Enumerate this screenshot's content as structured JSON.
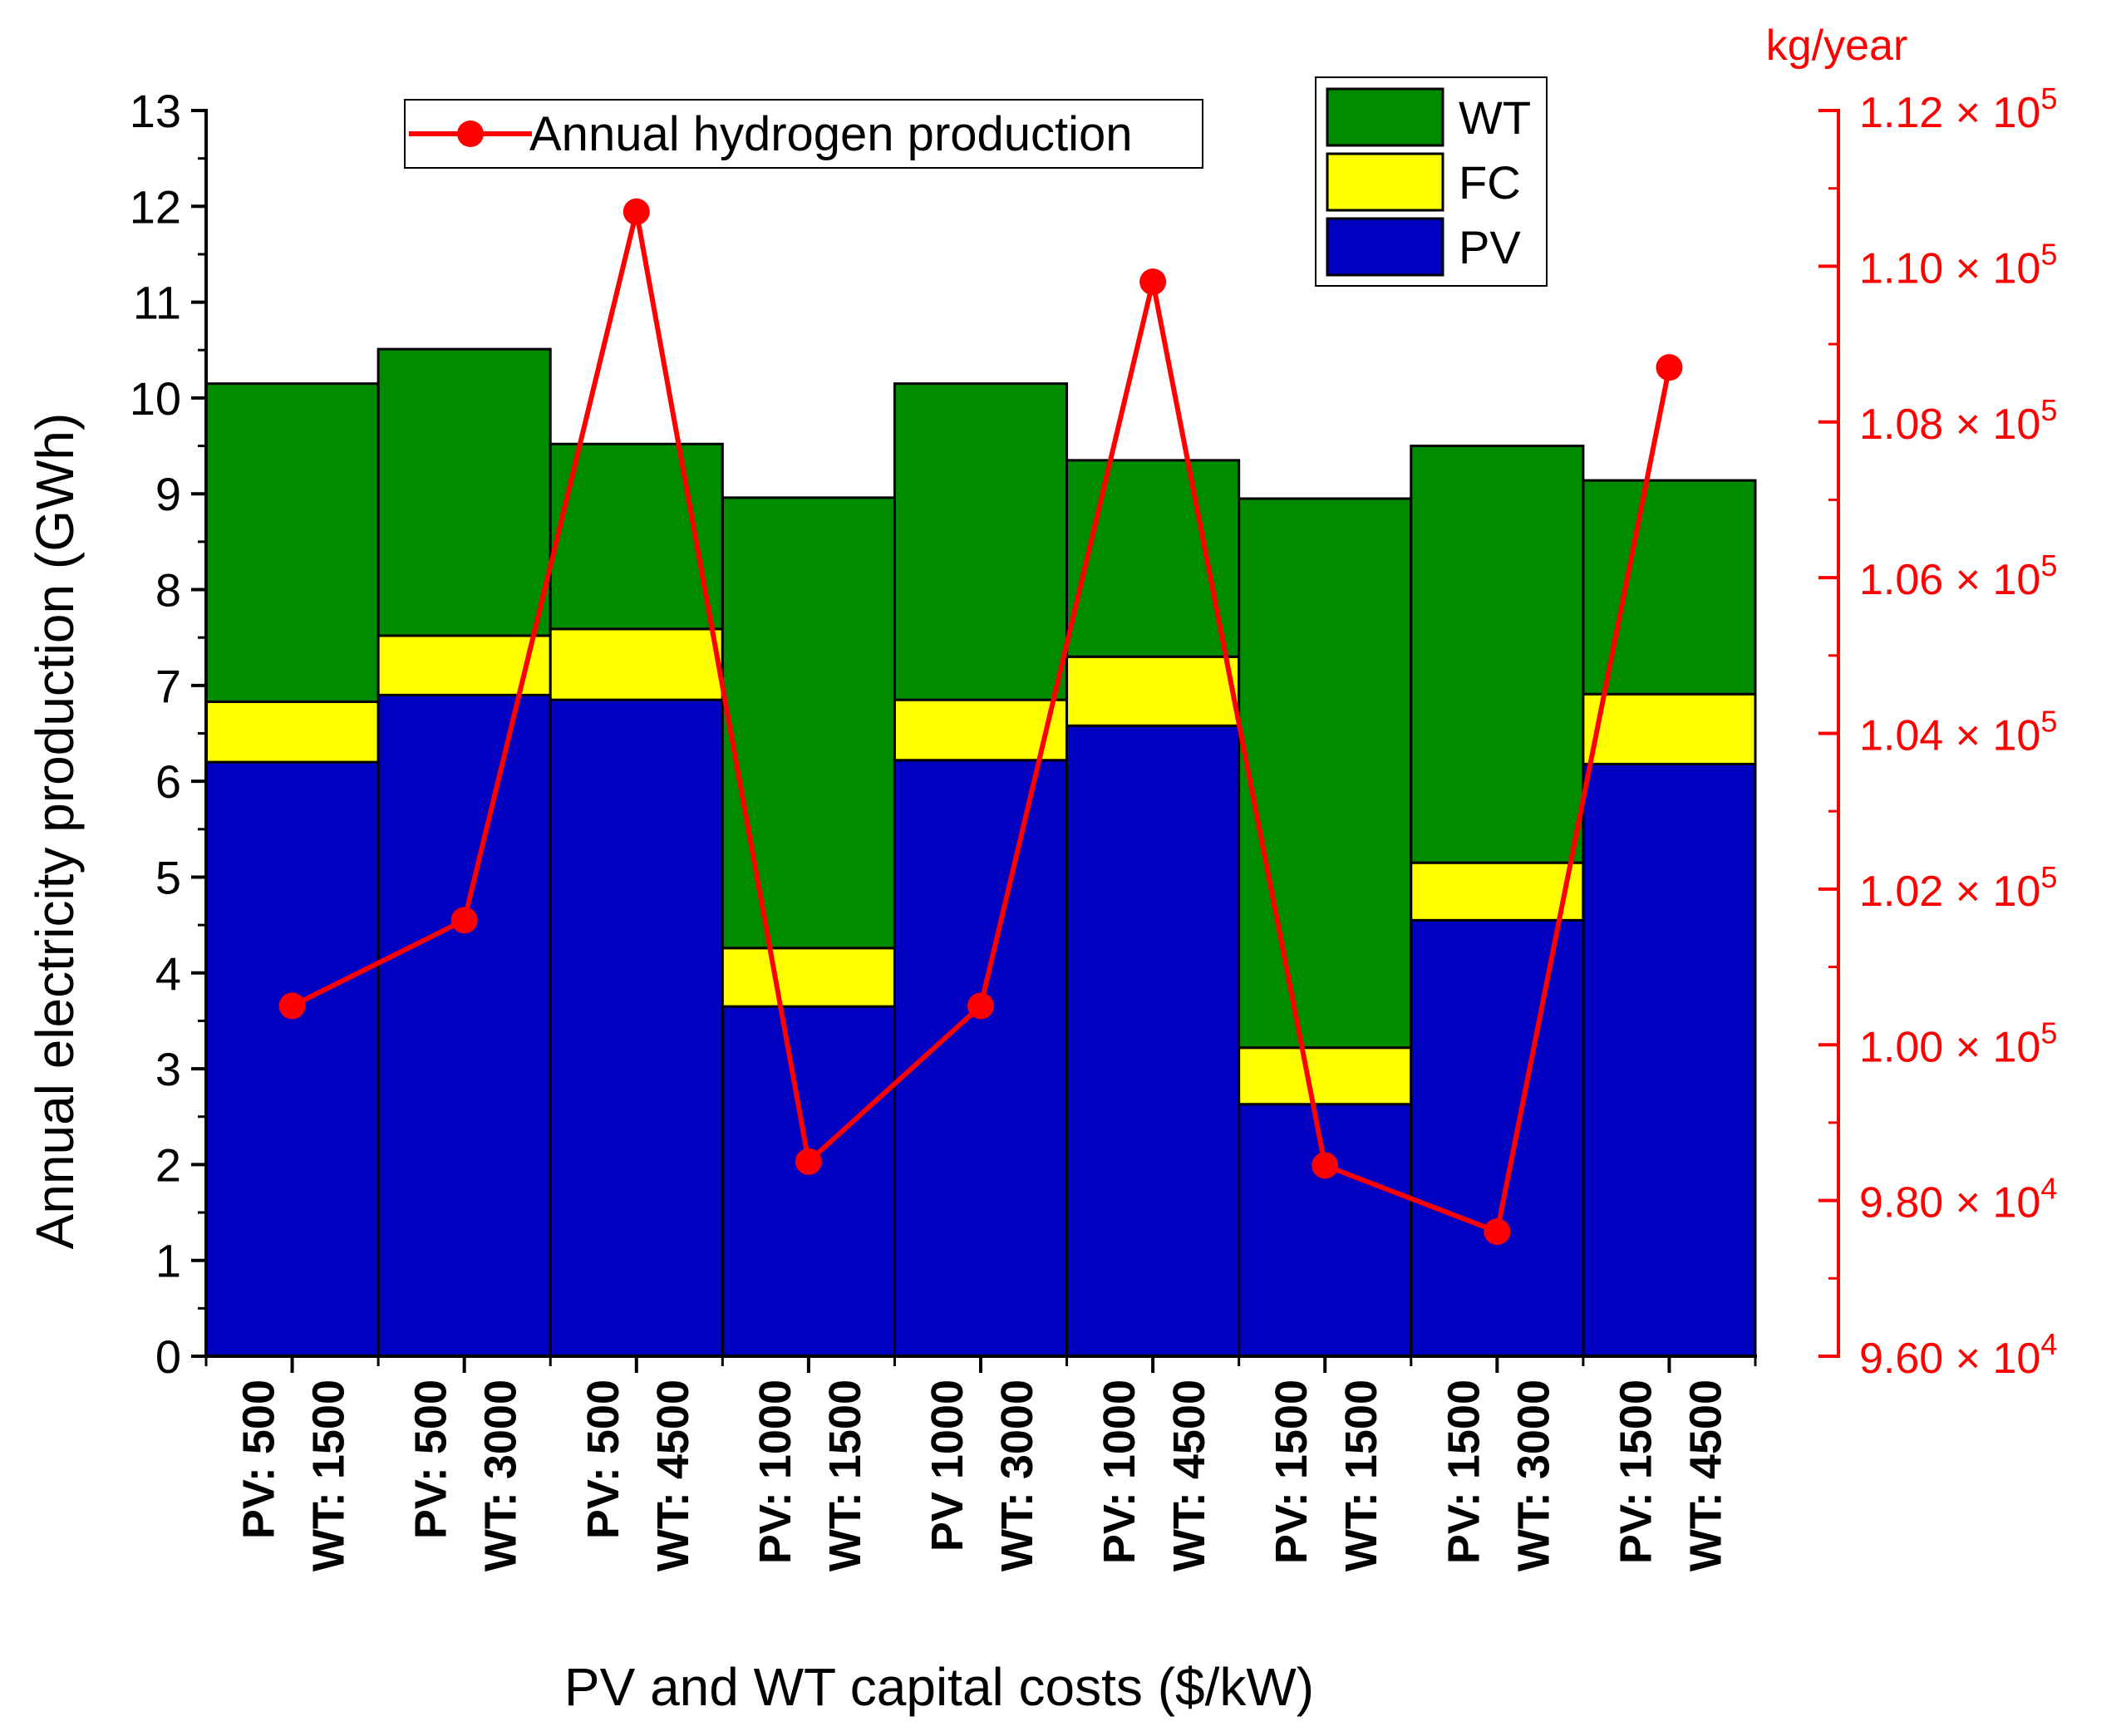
{
  "chart_data": {
    "type": "bar",
    "stacked": true,
    "xlabel": "PV and WT capital costs ($/kW)",
    "ylabel": "Annual electricity production (GWh)",
    "ylim": [
      0,
      13
    ],
    "yticks": [
      "0",
      "1",
      "2",
      "3",
      "4",
      "5",
      "6",
      "7",
      "8",
      "9",
      "10",
      "11",
      "12",
      "13"
    ],
    "categories": [
      [
        "PV: 500",
        "WT: 1500"
      ],
      [
        "PV: 500",
        "WT: 3000"
      ],
      [
        "PV: 500",
        "WT: 4500"
      ],
      [
        "PV: 1000",
        "WT: 1500"
      ],
      [
        "PV 1000",
        "WT: 3000"
      ],
      [
        "PV: 1000",
        "WT: 4500"
      ],
      [
        "PV: 1500",
        "WT: 1500"
      ],
      [
        "PV: 1500",
        "WT: 3000"
      ],
      [
        "PV: 1500",
        "WT: 4500"
      ]
    ],
    "series": [
      {
        "name": "PV",
        "color": "#0000c0",
        "values": [
          6.2,
          6.9,
          6.85,
          3.65,
          6.22,
          6.58,
          2.63,
          4.55,
          6.18
        ]
      },
      {
        "name": "FC",
        "color": "#ffff00",
        "values": [
          0.63,
          0.62,
          0.74,
          0.61,
          0.63,
          0.72,
          0.59,
          0.6,
          0.73
        ]
      },
      {
        "name": "WT",
        "color": "#008c00",
        "values": [
          3.32,
          2.99,
          1.93,
          4.7,
          3.3,
          2.05,
          5.73,
          4.35,
          2.23
        ]
      }
    ],
    "line_series": {
      "name": "Annual hydrogen production",
      "color": "#ff0000",
      "unit": "kg/year",
      "y2lim": [
        96000,
        112000
      ],
      "y2ticks": [
        {
          "value": 96000,
          "mantissa": "9.60",
          "exp": "4"
        },
        {
          "value": 98000,
          "mantissa": "9.80",
          "exp": "4"
        },
        {
          "value": 100000,
          "mantissa": "1.00",
          "exp": "5"
        },
        {
          "value": 102000,
          "mantissa": "1.02",
          "exp": "5"
        },
        {
          "value": 104000,
          "mantissa": "1.04",
          "exp": "5"
        },
        {
          "value": 106000,
          "mantissa": "1.06",
          "exp": "5"
        },
        {
          "value": 108000,
          "mantissa": "1.08",
          "exp": "5"
        },
        {
          "value": 110000,
          "mantissa": "1.10",
          "exp": "5"
        },
        {
          "value": 112000,
          "mantissa": "1.12",
          "exp": "5"
        }
      ],
      "values": [
        100500,
        101600,
        110700,
        98500,
        100500,
        109800,
        98450,
        97600,
        108700
      ]
    },
    "legend_bars": "top-right",
    "legend_line": "top-center"
  }
}
